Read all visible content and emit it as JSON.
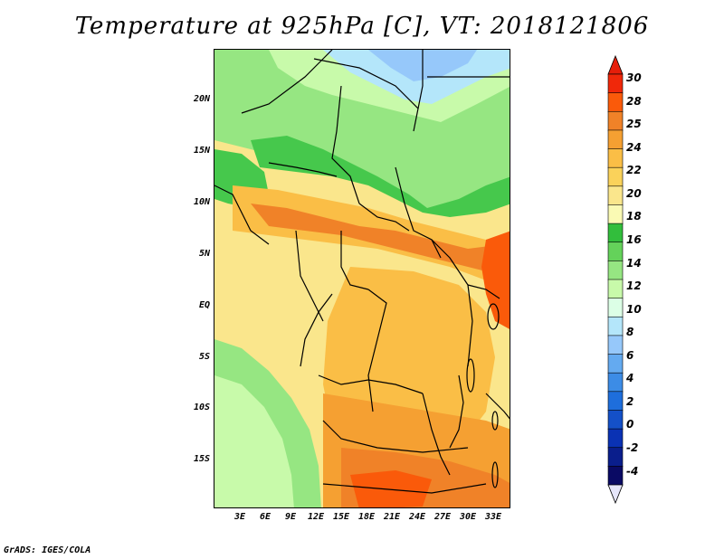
{
  "title": "Temperature at 925hPa [C], VT: 2018121806",
  "credit": "GrADS: IGES/COLA",
  "lat_labels": [
    "20N",
    "15N",
    "10N",
    "5N",
    "EQ",
    "5S",
    "10S",
    "15S"
  ],
  "lon_labels": [
    "3E",
    "6E",
    "9E",
    "12E",
    "15E",
    "18E",
    "21E",
    "24E",
    "27E",
    "30E",
    "33E"
  ],
  "colorbar": {
    "labels": [
      "30",
      "28",
      "25",
      "24",
      "22",
      "20",
      "18",
      "16",
      "14",
      "12",
      "10",
      "8",
      "6",
      "4",
      "2",
      "0",
      "-2",
      "-4"
    ],
    "colors": [
      "#f0280a",
      "#fa5a0a",
      "#f08228",
      "#f5a032",
      "#fabe46",
      "#fad25a",
      "#fae68c",
      "#fafab4",
      "#32be3c",
      "#64d25a",
      "#96e682",
      "#c8faaa",
      "#dcffe6",
      "#b4e6fa",
      "#96c8fa",
      "#64aaf0",
      "#3c8ce6",
      "#1e6edc",
      "#1450c8",
      "#0a32b4",
      "#0a1e8c",
      "#0a0a64"
    ],
    "over_color": "#e61e0a",
    "under_color": "#e6e6fa"
  },
  "map": {
    "colors": {
      "sea_north": "#dcffe6",
      "sahel_green": "#46c84c",
      "light_green": "#96e682",
      "pale_green": "#c8faaa",
      "blue_light": "#b4e6fa",
      "blue_mid": "#96c8fa",
      "yellow": "#fae68c",
      "yellow_orange": "#fad25a",
      "orange": "#fabe46",
      "orange_dark": "#f5a032",
      "red_orange": "#f08228",
      "red": "#fa5a0a",
      "border": "#000000"
    }
  }
}
